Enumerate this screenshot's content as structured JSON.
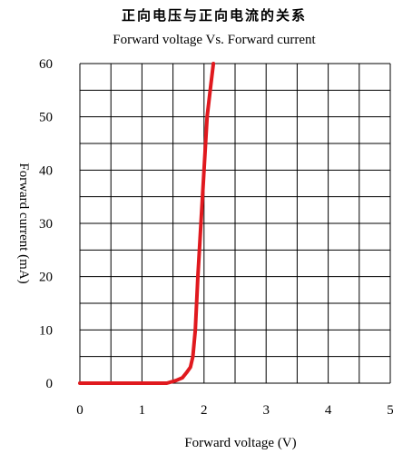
{
  "chart_data": {
    "type": "line",
    "title": "正向电压与正向电流的关系",
    "subtitle": "Forward voltage Vs. Forward current",
    "xlabel": "Forward voltage (V)",
    "ylabel": "Forward current (mA)",
    "xlim": [
      0,
      5
    ],
    "ylim": [
      0,
      60
    ],
    "xticks": [
      "0",
      "1",
      "2",
      "3",
      "4",
      "5"
    ],
    "yticks": [
      "0",
      "10",
      "20",
      "30",
      "40",
      "50",
      "60"
    ],
    "grid": true,
    "series": [
      {
        "color": "#e0191e",
        "x": [
          0,
          1.0,
          1.4,
          1.55,
          1.65,
          1.72,
          1.78,
          1.82,
          1.86,
          1.9,
          1.95,
          2.0,
          2.05,
          2.1,
          2.15
        ],
        "y": [
          0,
          0,
          0,
          0.5,
          1,
          2,
          3,
          5,
          10,
          20,
          30,
          40,
          50,
          55,
          60
        ]
      }
    ]
  }
}
